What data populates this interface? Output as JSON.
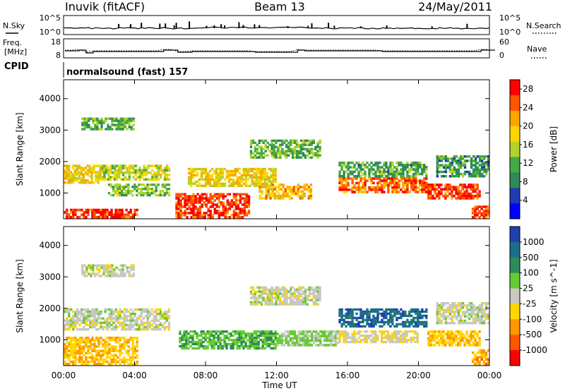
{
  "header": {
    "station": "Inuvik (fitACF)",
    "beam": "Beam 13",
    "date": "24/May/2011",
    "cpid_label": "CPID",
    "cpid_text": "normalsound (fast) 157"
  },
  "strip_nsky": {
    "left_label": "N.Sky",
    "left_ticks": [
      "10^5",
      "10^0"
    ],
    "right_ticks": [
      "10^5",
      "10^0"
    ],
    "right_label": "N.Search"
  },
  "strip_freq": {
    "left_label_1": "Freq.",
    "left_label_2": "[MHz]",
    "left_ticks": [
      "18",
      "8"
    ],
    "right_ticks": [
      "60",
      "0"
    ],
    "right_label": "Nave"
  },
  "colors": {
    "power_scale": [
      "#0000ff",
      "#1e3cb4",
      "#2e8b57",
      "#44aa44",
      "#b4d22a",
      "#ffd700",
      "#ffa500",
      "#ff5500",
      "#ff0000"
    ],
    "velocity_scale": [
      "#2040b0",
      "#1e6e8a",
      "#2e8b57",
      "#66cc33",
      "#c8c8c0",
      "#ffd700",
      "#ff9900",
      "#ff5500",
      "#ff0000"
    ]
  },
  "chart_data": [
    {
      "type": "heatmap",
      "title": "Power",
      "ylabel": "Slant Range [km]",
      "xlabel": "Time UT",
      "x_ticks": [
        "00:00",
        "04:00",
        "08:00",
        "12:00",
        "16:00",
        "20:00",
        "00:00"
      ],
      "x_range_hours": [
        0,
        24
      ],
      "y_ticks": [
        1000,
        2000,
        3000,
        4000
      ],
      "ylim": [
        180,
        4600
      ],
      "colorbar": {
        "label": "Power [dB]",
        "ticks": [
          4,
          8,
          12,
          16,
          20,
          24,
          28
        ],
        "range": [
          0,
          30
        ]
      },
      "regions": [
        {
          "t0": 0.0,
          "t1": 4.2,
          "r0": 200,
          "r1": 500,
          "value": 27
        },
        {
          "t0": 0.0,
          "t1": 2.0,
          "r0": 1300,
          "r1": 1900,
          "value": 18
        },
        {
          "t0": 1.0,
          "t1": 4.0,
          "r0": 3000,
          "r1": 3400,
          "value": 12
        },
        {
          "t0": 2.0,
          "t1": 6.0,
          "r0": 1400,
          "r1": 1900,
          "value": 16
        },
        {
          "t0": 2.5,
          "t1": 6.0,
          "r0": 900,
          "r1": 1300,
          "value": 13
        },
        {
          "t0": 6.3,
          "t1": 10.5,
          "r0": 200,
          "r1": 1000,
          "value": 27
        },
        {
          "t0": 7.0,
          "t1": 12.0,
          "r0": 1200,
          "r1": 1800,
          "value": 18
        },
        {
          "t0": 10.5,
          "t1": 14.5,
          "r0": 2100,
          "r1": 2700,
          "value": 12
        },
        {
          "t0": 11.0,
          "t1": 14.0,
          "r0": 800,
          "r1": 1300,
          "value": 20
        },
        {
          "t0": 15.5,
          "t1": 20.5,
          "r0": 1000,
          "r1": 1500,
          "value": 24
        },
        {
          "t0": 15.5,
          "t1": 20.5,
          "r0": 1500,
          "r1": 2000,
          "value": 11
        },
        {
          "t0": 20.5,
          "t1": 23.5,
          "r0": 800,
          "r1": 1300,
          "value": 27
        },
        {
          "t0": 21.0,
          "t1": 24.0,
          "r0": 1500,
          "r1": 2200,
          "value": 10
        },
        {
          "t0": 23.0,
          "t1": 24.0,
          "r0": 200,
          "r1": 600,
          "value": 26
        }
      ]
    },
    {
      "type": "heatmap",
      "title": "Velocity",
      "ylabel": "Slant Range [km]",
      "xlabel": "Time UT",
      "x_ticks": [
        "00:00",
        "04:00",
        "08:00",
        "12:00",
        "16:00",
        "20:00",
        "00:00"
      ],
      "x_range_hours": [
        0,
        24
      ],
      "y_ticks": [
        1000,
        2000,
        3000,
        4000
      ],
      "ylim": [
        180,
        4600
      ],
      "colorbar": {
        "label": "Velocity [m s^-1]",
        "ticks": [
          1000,
          500,
          100,
          25,
          -25,
          -100,
          -500,
          -1000
        ],
        "range": [
          -1000,
          1000
        ]
      },
      "regions": [
        {
          "t0": 0.0,
          "t1": 4.2,
          "r0": 200,
          "r1": 1100,
          "value": -300
        },
        {
          "t0": 1.0,
          "t1": 4.0,
          "r0": 3000,
          "r1": 3400,
          "value": 0
        },
        {
          "t0": 0.0,
          "t1": 6.0,
          "r0": 1300,
          "r1": 2000,
          "value": 0
        },
        {
          "t0": 6.5,
          "t1": 12.0,
          "r0": 700,
          "r1": 1300,
          "value": 300
        },
        {
          "t0": 10.5,
          "t1": 14.5,
          "r0": 2100,
          "r1": 2700,
          "value": 0
        },
        {
          "t0": 12.0,
          "t1": 15.5,
          "r0": 800,
          "r1": 1300,
          "value": 150
        },
        {
          "t0": 15.5,
          "t1": 20.5,
          "r0": 1400,
          "r1": 2000,
          "value": 700
        },
        {
          "t0": 15.5,
          "t1": 20.0,
          "r0": 900,
          "r1": 1300,
          "value": -100
        },
        {
          "t0": 20.5,
          "t1": 23.5,
          "r0": 800,
          "r1": 1300,
          "value": -300
        },
        {
          "t0": 21.0,
          "t1": 24.0,
          "r0": 1500,
          "r1": 2200,
          "value": 0
        },
        {
          "t0": 23.0,
          "t1": 24.0,
          "r0": 200,
          "r1": 700,
          "value": -400
        }
      ]
    }
  ]
}
